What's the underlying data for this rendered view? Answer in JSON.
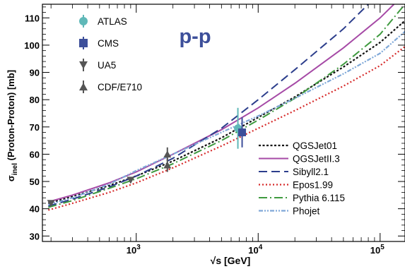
{
  "chart_data": {
    "type": "line",
    "title": "p-p",
    "xlabel": "√s   [GeV]",
    "ylabel": "σinel (Proton-Proton)   [mb]",
    "ylabel_main": "σ",
    "ylabel_sub": "inel",
    "ylabel_rest": " (Proton-Proton)   [mb]",
    "x_scale": "log",
    "xlim": [
      170,
      160000
    ],
    "ylim": [
      28,
      115
    ],
    "x_ticks": [
      {
        "value": 1000,
        "base": "10",
        "exp": "3"
      },
      {
        "value": 10000,
        "base": "10",
        "exp": "4"
      },
      {
        "value": 100000,
        "base": "10",
        "exp": "5"
      }
    ],
    "y_ticks": [
      "30",
      "40",
      "50",
      "60",
      "70",
      "80",
      "90",
      "100",
      "110"
    ],
    "grid": false,
    "legend_data": {
      "placement": "top-left",
      "entries": [
        {
          "name": "ATLAS",
          "marker": "circle",
          "color": "#5fb8b8"
        },
        {
          "name": "CMS",
          "marker": "square",
          "color": "#3d4f9a"
        },
        {
          "name": "UA5",
          "marker": "triangle-down",
          "color": "#555555"
        },
        {
          "name": "CDF/E710",
          "marker": "triangle-up",
          "color": "#555555"
        }
      ]
    },
    "legend_models": {
      "placement": "bottom-right",
      "entries": [
        {
          "name": "QGSJet01",
          "color": "#111111",
          "dash": "3,2.5",
          "width": 2.2
        },
        {
          "name": "QGSJetII.3",
          "color": "#a64aa6",
          "dash": "",
          "width": 2
        },
        {
          "name": "Sibyll2.1",
          "color": "#2c3e8c",
          "dash": "12,6",
          "width": 2
        },
        {
          "name": "Epos1.99",
          "color": "#d62a2a",
          "dash": "2,3",
          "width": 2.2
        },
        {
          "name": "Pythia 6.115",
          "color": "#3f9a3f",
          "dash": "12,4,2,4",
          "width": 2
        },
        {
          "name": "Phojet",
          "color": "#7fa8d8",
          "dash": "6,2,2,2,2,2",
          "width": 2.2
        }
      ]
    },
    "series": [
      {
        "name": "QGSJet01",
        "x": [
          190,
          300,
          600,
          1000,
          2000,
          5000,
          10000,
          20000,
          50000,
          100000,
          160000
        ],
        "y": [
          42,
          44.5,
          48.5,
          52,
          57.5,
          66,
          73.5,
          81,
          92,
          101,
          109
        ]
      },
      {
        "name": "QGSJetII.3",
        "x": [
          190,
          300,
          600,
          1000,
          2000,
          5000,
          10000,
          20000,
          50000,
          100000,
          130000
        ],
        "y": [
          42.5,
          45,
          49.5,
          53.5,
          60,
          69,
          77,
          86,
          99,
          110,
          115
        ]
      },
      {
        "name": "Sibyll2.1",
        "x": [
          190,
          300,
          600,
          1000,
          2000,
          5000,
          10000,
          20000,
          50000,
          80000
        ],
        "y": [
          41,
          43.5,
          48,
          52,
          58.5,
          69.5,
          80,
          91,
          106,
          115
        ]
      },
      {
        "name": "Epos1.99",
        "x": [
          190,
          300,
          600,
          1000,
          2000,
          5000,
          10000,
          20000,
          50000,
          100000,
          160000
        ],
        "y": [
          39.5,
          42,
          46,
          49.5,
          55,
          63,
          69.5,
          76,
          85,
          92.5,
          99.5
        ]
      },
      {
        "name": "Pythia 6.115",
        "x": [
          190,
          300,
          600,
          1000,
          2000,
          5000,
          10000,
          20000,
          50000,
          100000,
          160000
        ],
        "y": [
          40.5,
          43,
          47.5,
          51,
          56.5,
          65,
          72.5,
          80.5,
          93,
          104,
          115
        ]
      },
      {
        "name": "Phojet",
        "x": [
          190,
          300,
          600,
          1000,
          2000,
          5000,
          10000,
          20000,
          50000,
          100000,
          160000
        ],
        "y": [
          41.5,
          44,
          49,
          54,
          60,
          68,
          74,
          80.5,
          89.5,
          97,
          105
        ]
      }
    ],
    "data_points": [
      {
        "name": "UA5",
        "marker": "triangle-down",
        "x": 200,
        "y": 42,
        "err": 0.8
      },
      {
        "name": "UA5",
        "marker": "triangle-down",
        "x": 900,
        "y": 50.5,
        "err": 1.0
      },
      {
        "name": "CDF/E710",
        "marker": "triangle-up",
        "x": 1800,
        "y": 60,
        "err": 2.5
      },
      {
        "name": "CDF/E710",
        "marker": "triangle-up",
        "x": 1800,
        "y": 56,
        "err": 2.5
      },
      {
        "name": "ATLAS",
        "marker": "circle",
        "x": 7000,
        "y": 69.5,
        "err": 7.5
      },
      {
        "name": "CMS",
        "marker": "square",
        "x": 7000,
        "y": 68,
        "err": 5.5
      }
    ]
  }
}
